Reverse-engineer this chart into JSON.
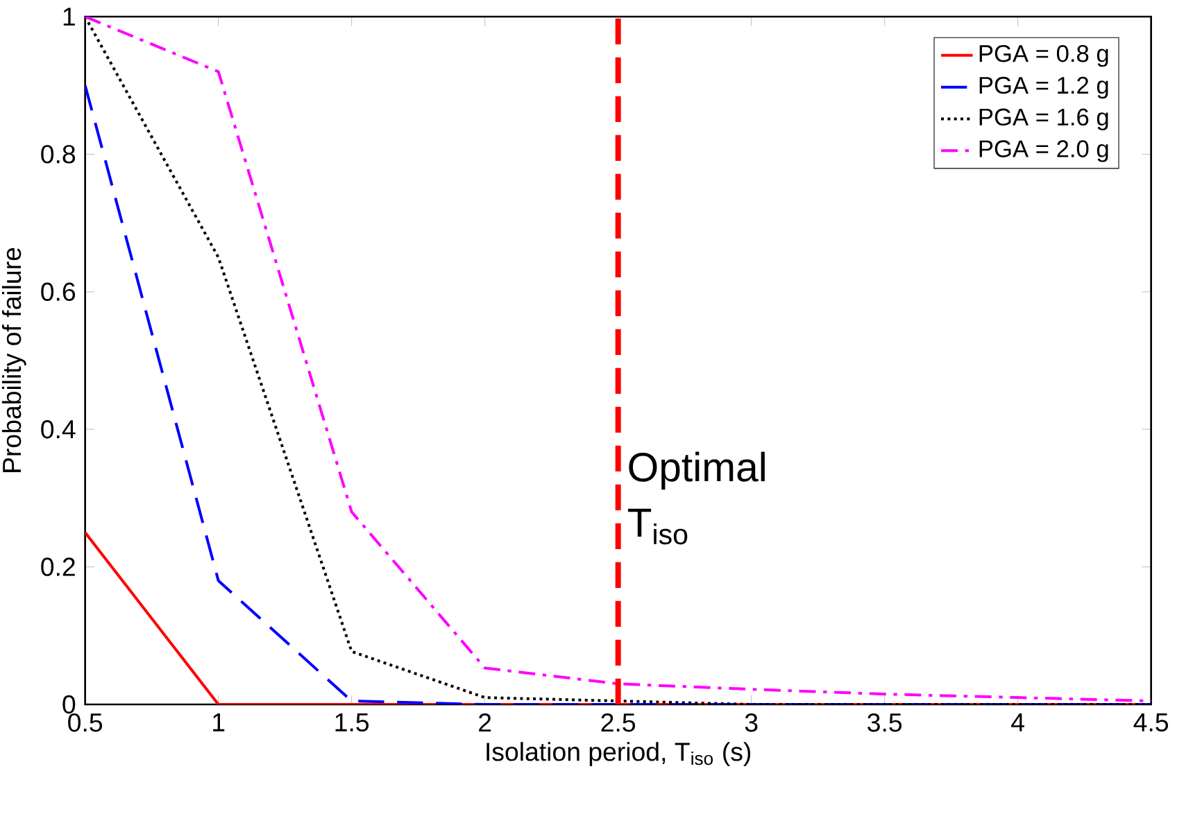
{
  "chart_data": {
    "type": "line",
    "xlabel": "Isolation period, T$_{iso}$ (s)",
    "ylabel": "Probability of failure",
    "x": [
      0.5,
      1,
      1.5,
      2,
      2.5,
      3,
      3.5,
      4,
      4.5
    ],
    "series": [
      {
        "name": "PGA = 0.8 g",
        "color": "#ff0000",
        "line_style": "solid",
        "values": [
          0.25,
          0,
          0,
          0,
          0,
          0,
          0,
          0,
          0
        ]
      },
      {
        "name": "PGA = 1.2 g",
        "color": "#0000ff",
        "line_style": "dashed",
        "values": [
          0.9,
          0.18,
          0.005,
          0,
          0,
          0,
          0,
          0,
          0
        ]
      },
      {
        "name": "PGA = 1.6 g",
        "color": "#000000",
        "line_style": "dotted",
        "values": [
          1.0,
          0.65,
          0.077,
          0.01,
          0.005,
          0,
          0,
          0,
          0
        ]
      },
      {
        "name": "PGA = 2.0 g",
        "color": "#ff00ff",
        "line_style": "dashdot",
        "values": [
          1.0,
          0.92,
          0.28,
          0.053,
          0.03,
          0.022,
          0.015,
          0.01,
          0.005
        ]
      }
    ],
    "xlim": [
      0.5,
      4.5
    ],
    "ylim": [
      0,
      1
    ],
    "xticks": [
      0.5,
      1,
      1.5,
      2,
      2.5,
      3,
      3.5,
      4,
      4.5
    ],
    "yticks": [
      0,
      0.2,
      0.4,
      0.6,
      0.8,
      1
    ],
    "ref_lines": [
      {
        "axis": "x",
        "value": 2.5,
        "color": "#ff0000",
        "line_style": "dashed"
      }
    ],
    "annotations": [
      {
        "text": "Optimal T$_{iso}$",
        "x": 2.5,
        "y": 0.3
      }
    ],
    "legend": "top right",
    "grid": false,
    "marker": "none"
  }
}
